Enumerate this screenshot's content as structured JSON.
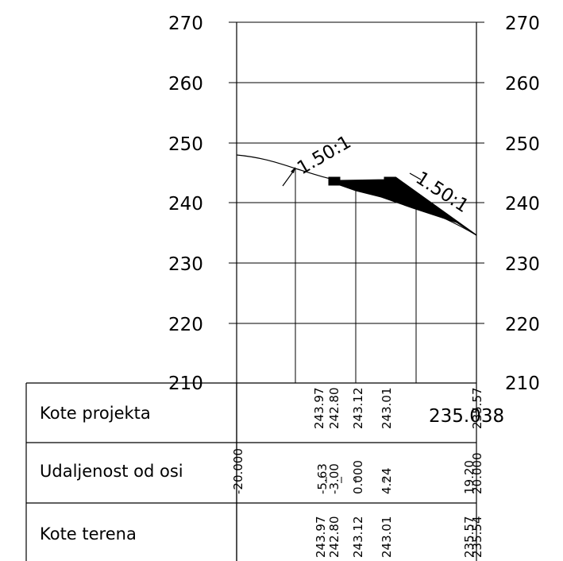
{
  "axis": {
    "left_ticks": [
      "270",
      "260",
      "250",
      "240",
      "230",
      "220",
      "210"
    ],
    "right_ticks": [
      "270",
      "260",
      "250",
      "240",
      "230",
      "220",
      "210"
    ],
    "y_values": [
      270,
      260,
      250,
      240,
      230,
      220,
      210
    ]
  },
  "slopes": {
    "left": "1.50:1",
    "right": "1.50:1"
  },
  "table": {
    "rows": [
      {
        "label": "Kote projekta"
      },
      {
        "label": "Udaljenost od osi"
      },
      {
        "label": "Kote terena"
      }
    ]
  },
  "project_elevations": [
    "243.97",
    "242.80",
    "243.12",
    "243.01",
    "235.57"
  ],
  "project_end_label": "235.038",
  "distances": [
    "-20.000",
    "-5.63",
    "-3.00",
    "0.000",
    "4.24",
    "19.20",
    "20.000"
  ],
  "terrain_elevations": [
    "243.97",
    "242.80",
    "243.12",
    "243.01",
    "235.57",
    "235.54"
  ]
}
